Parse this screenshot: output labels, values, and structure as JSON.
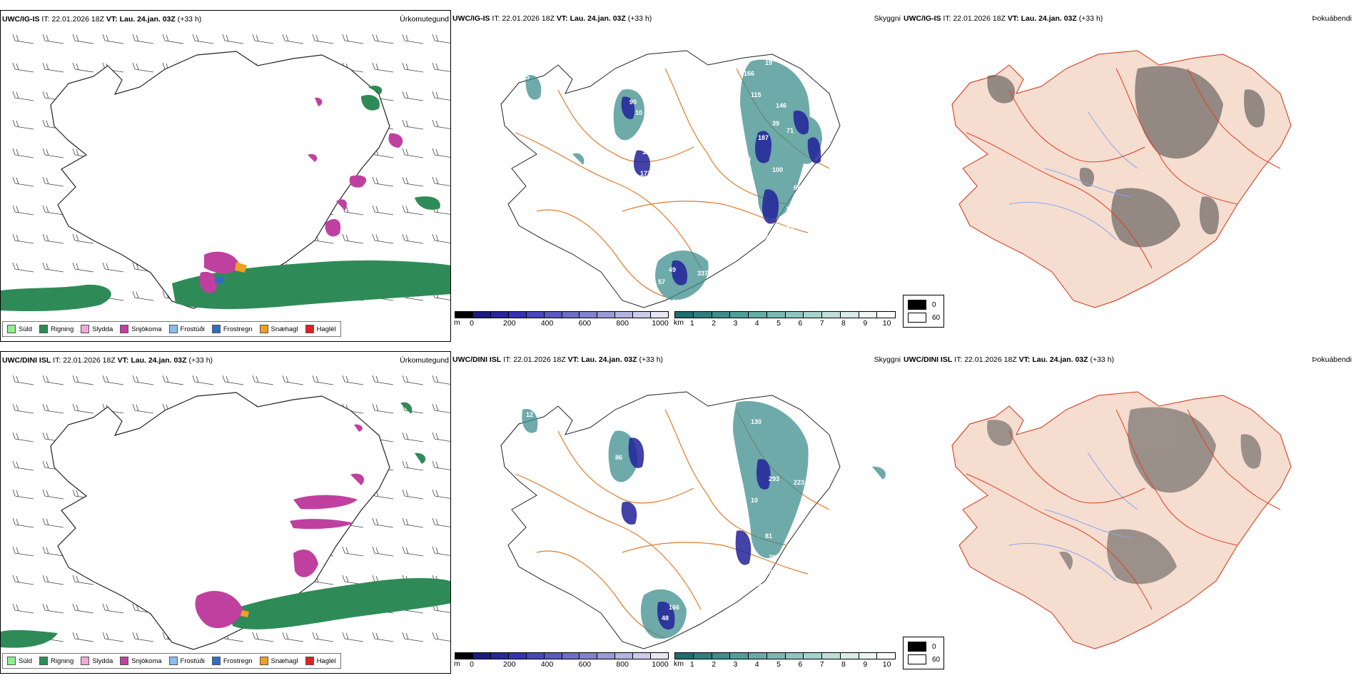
{
  "rows": [
    {
      "model": "UWC/IG-IS",
      "it_label": "IT:",
      "it_value": "22.01.2026 18Z",
      "vt_label": "VT:",
      "vt_value": "Lau. 24.jan. 03Z",
      "lead": "(+33 h)",
      "titles": [
        "Úrkomutegund",
        "Skyggni",
        "Þokuábendi"
      ],
      "visibility_labels": [
        "15",
        "90",
        "10",
        "108",
        "12",
        "173",
        "79",
        "7",
        "115",
        "70",
        "85",
        "187",
        "39",
        "115",
        "146",
        "166",
        "19",
        "100",
        "71",
        "69",
        "83",
        "61",
        "57",
        "49",
        "57",
        "337",
        "36"
      ]
    },
    {
      "model": "UWC/DINI ISL",
      "it_label": "IT:",
      "it_value": "22.01.2026 18Z",
      "vt_label": "VT:",
      "vt_value": "Lau. 24.jan. 03Z",
      "lead": "(+33 h)",
      "titles": [
        "Úrkomutegund",
        "Skyggni",
        "Þokuábendi"
      ],
      "visibility_labels": [
        "12",
        "86",
        "91",
        "99",
        "55",
        "90",
        "187",
        "77",
        "10",
        "293",
        "223",
        "227",
        "80",
        "81",
        "108",
        "70",
        "43",
        "130",
        "176",
        "48",
        "166",
        "77"
      ]
    }
  ],
  "precip_legend": [
    {
      "label": "Súld",
      "color": "#90ee90"
    },
    {
      "label": "Rigning",
      "color": "#2e8b57"
    },
    {
      "label": "Slydda",
      "color": "#f4a6d7"
    },
    {
      "label": "Snjókoma",
      "color": "#c040a0"
    },
    {
      "label": "Frostúði",
      "color": "#87bdf0"
    },
    {
      "label": "Frostregn",
      "color": "#2f6fbf"
    },
    {
      "label": "Snæhagl",
      "color": "#f0a020"
    },
    {
      "label": "Haglél",
      "color": "#e02020"
    }
  ],
  "colorbars": {
    "ceiling": {
      "unit": "m",
      "ticks": [
        "0",
        "200",
        "400",
        "600",
        "800",
        "1000"
      ],
      "colors": [
        "#000000",
        "#1c1c80",
        "#28289a",
        "#3434b0",
        "#4848b8",
        "#5a5ac0",
        "#6e6ec8",
        "#8282d0",
        "#9a9ad8",
        "#b4b4e0",
        "#ccccea",
        "#e6e6f5"
      ]
    },
    "visibility": {
      "unit": "km",
      "ticks": [
        "1",
        "2",
        "3",
        "4",
        "5",
        "6",
        "7",
        "8",
        "9",
        "10"
      ],
      "colors": [
        "#1e6e6e",
        "#2e7e7e",
        "#3e8e8c",
        "#50a09a",
        "#64aca6",
        "#7ab8b2",
        "#90c4be",
        "#a8d2cc",
        "#c0ded8",
        "#d8ebe6",
        "#eef6f4",
        "#ffffff"
      ]
    },
    "fog": {
      "labels": [
        "0",
        "60"
      ]
    }
  },
  "colors": {
    "rain": "#2e8b57",
    "snow": "#c040a0",
    "road": "#e07a2a",
    "river": "#8aa8f0",
    "fog_land": "#f5ddd0",
    "ceiling_blue": "#22229a",
    "vis_teal": "#3e8e8c"
  }
}
